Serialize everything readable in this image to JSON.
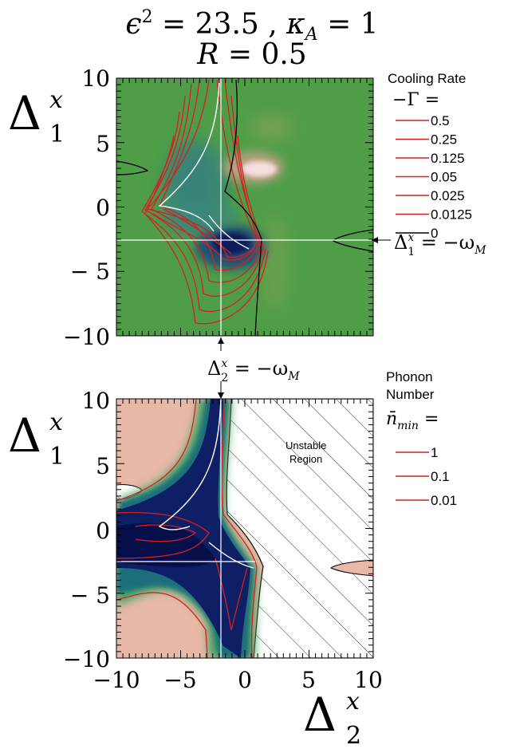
{
  "header": {
    "line1": "ϵ² = 23.5 , κ_A = 1",
    "line2": "R = 0.5"
  },
  "chart_data": [
    {
      "type": "contour",
      "xlim": [
        -10,
        10
      ],
      "ylim": [
        -10,
        10
      ],
      "xlabel": "Δ₂ˣ",
      "ylabel": "Δ₁ˣ",
      "x_ticks": [
        "−10",
        "−5",
        "0",
        "5",
        "10"
      ],
      "y_ticks": [
        "10",
        "5",
        "0",
        "− 5",
        "−10"
      ],
      "legend_title": "Cooling Rate",
      "legend_subtitle": "−Γ =",
      "legend_entries": [
        {
          "label": "0.5",
          "color": "#d62020"
        },
        {
          "label": "0.25",
          "color": "#d62020"
        },
        {
          "label": "0.125",
          "color": "#d62020"
        },
        {
          "label": "0.05",
          "color": "#d62020"
        },
        {
          "label": "0.025",
          "color": "#d62020"
        },
        {
          "label": "0.0125",
          "color": "#d62020"
        },
        {
          "label": "0",
          "color": "#000000"
        }
      ],
      "background_color": "#4f9e47",
      "guide_lines": {
        "horizontal_y": -2.5,
        "vertical_x": -1.7
      },
      "annotations": [
        {
          "text": "Δ₁ˣ = −ω_M",
          "points_to": "horizontal guide line"
        },
        {
          "text": "Δ₂ˣ = −ω_M",
          "points_to": "vertical guide line"
        }
      ]
    },
    {
      "type": "contour",
      "xlim": [
        -10,
        10
      ],
      "ylim": [
        -10,
        10
      ],
      "xlabel": "Δ₂ˣ",
      "ylabel": "Δ₁ˣ",
      "x_ticks": [
        "−10",
        "−5",
        "0",
        "5",
        "10"
      ],
      "y_ticks": [
        "10",
        "5",
        "0",
        "− 5",
        "−10"
      ],
      "legend_title_line1": "Phonon",
      "legend_title_line2": "Number",
      "legend_subtitle": "n̄_min =",
      "legend_entries": [
        {
          "label": "1",
          "color": "#d62020"
        },
        {
          "label": "0.1",
          "color": "#d62020"
        },
        {
          "label": "0.01",
          "color": "#d62020"
        }
      ],
      "region_label_line1": "Unstable",
      "region_label_line2": "Region",
      "background_color": "#e8b9a6",
      "guide_lines": {
        "horizontal_y": -2.5,
        "vertical_x": -1.7
      }
    }
  ]
}
